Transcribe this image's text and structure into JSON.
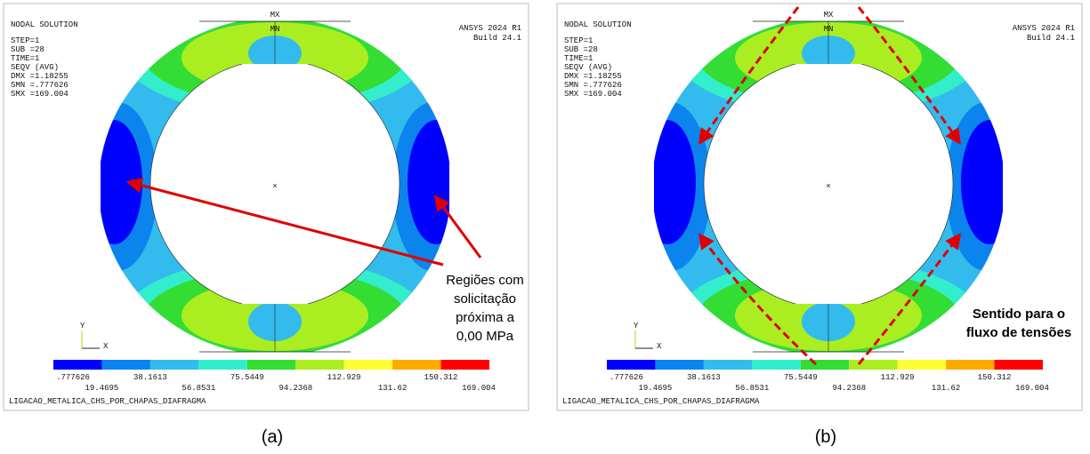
{
  "panels": [
    {
      "caption": "(a)",
      "title": "NODAL SOLUTION",
      "info": [
        "STEP=1",
        "SUB =28",
        "TIME=1",
        "SEQV     (AVG)",
        "DMX =1.18255",
        "SMN =.777626",
        "SMX =169.004"
      ],
      "software": [
        "ANSYS 2024 R1",
        "Build 24.1"
      ],
      "markers": [
        "MX",
        "MN"
      ],
      "axes": [
        "Y",
        "X"
      ],
      "legend": [
        ".777626",
        "19.4695",
        "38.1613",
        "56.8531",
        "75.5449",
        "94.2368",
        "112.929",
        "131.62",
        "150.312",
        "169.004"
      ],
      "model_name": "LIGACAO_METALICA_CHS_POR_CHAPAS_DIAFRAGMA",
      "annotation": [
        "Regiões com",
        "solicitação",
        "próxima a",
        "0,00 MPa"
      ]
    },
    {
      "caption": "(b)",
      "title": "NODAL SOLUTION",
      "info": [
        "STEP=1",
        "SUB =28",
        "TIME=1",
        "SEQV     (AVG)",
        "DMX =1.18255",
        "SMN =.777626",
        "SMX =169.004"
      ],
      "software": [
        "ANSYS 2024 R1",
        "Build 24.1"
      ],
      "markers": [
        "MX",
        "MN"
      ],
      "axes": [
        "Y",
        "X"
      ],
      "legend": [
        ".777626",
        "19.4695",
        "38.1613",
        "56.8531",
        "75.5449",
        "94.2368",
        "112.929",
        "131.62",
        "150.312",
        "169.004"
      ],
      "model_name": "LIGACAO_METALICA_CHS_POR_CHAPAS_DIAFRAGMA",
      "annotation": [
        "Sentido para o",
        "fluxo de tensões"
      ]
    }
  ]
}
